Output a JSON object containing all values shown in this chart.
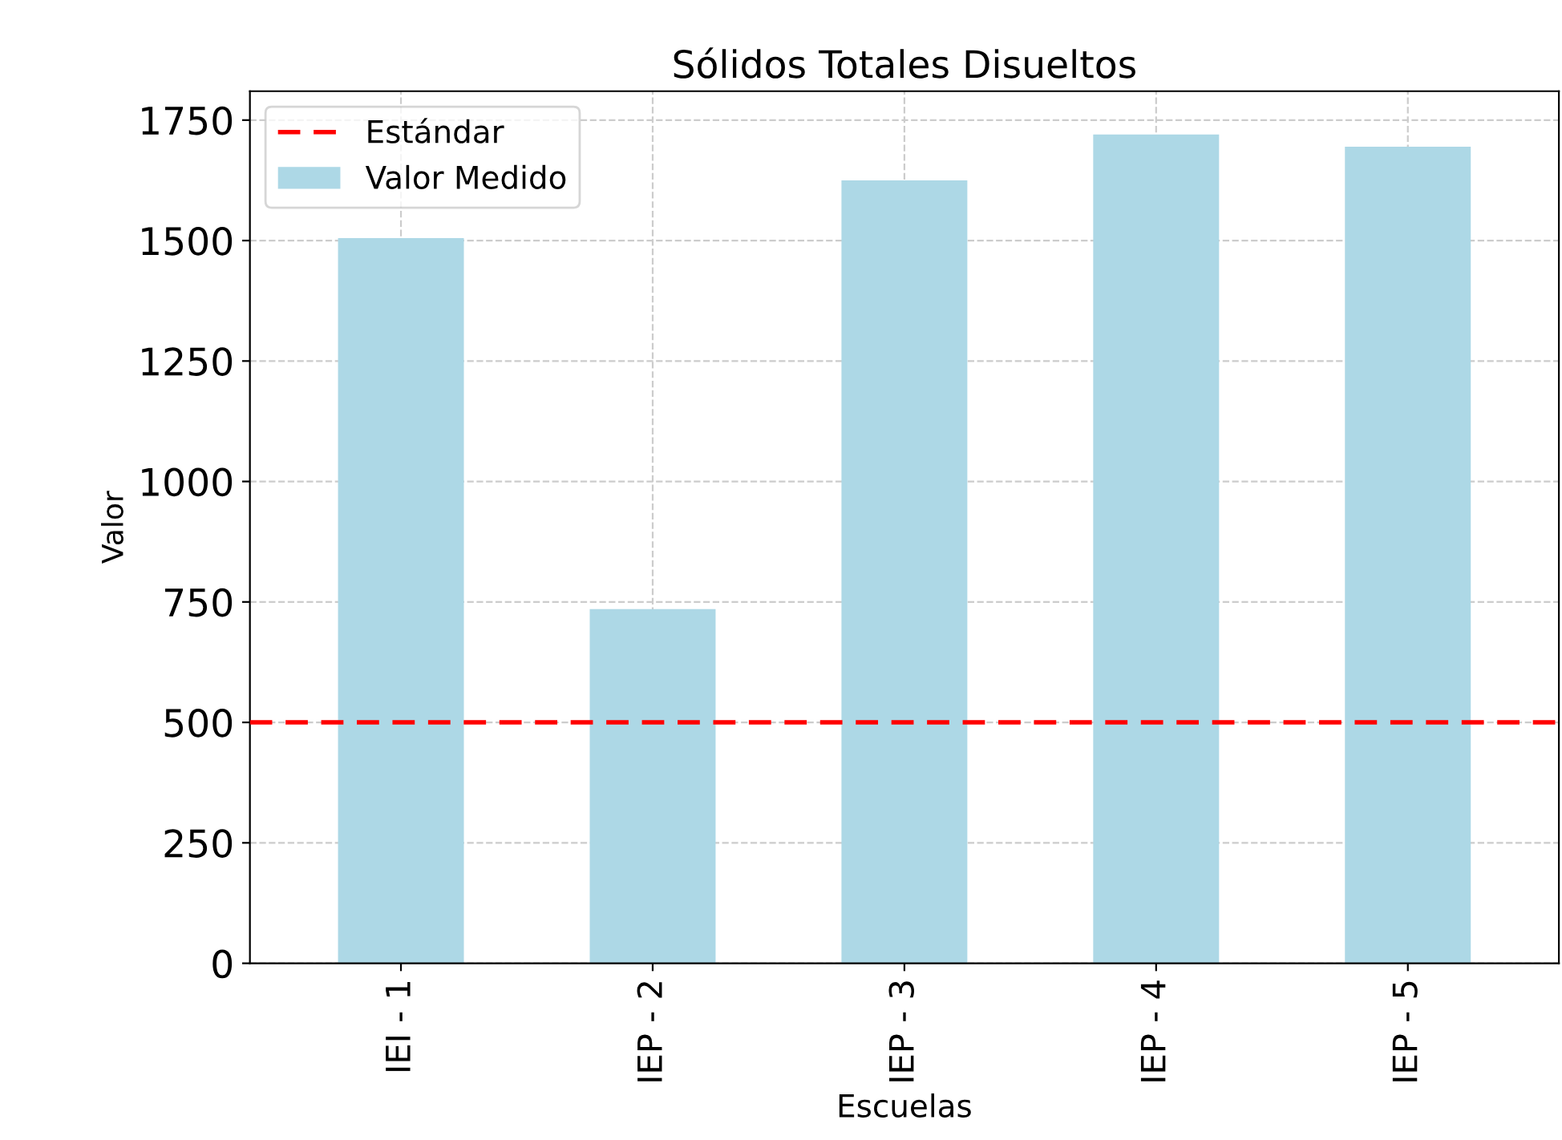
{
  "chart_data": {
    "type": "bar",
    "title": "Sólidos Totales Disueltos",
    "xlabel": "Escuelas",
    "ylabel": "Valor",
    "categories": [
      "IEI - 1",
      "IEP - 2",
      "IEP - 3",
      "IEP - 4",
      "IEP - 5"
    ],
    "series": [
      {
        "name": "Valor Medido",
        "color": "#add8e6",
        "values": [
          1505,
          735,
          1625,
          1720,
          1695
        ]
      }
    ],
    "ref_lines": [
      {
        "axis": "y",
        "value": 500,
        "label": "Estándar",
        "color": "#ff0000",
        "line_style": "dashed"
      }
    ],
    "ylim": [
      0,
      1810
    ],
    "yticks": [
      0,
      250,
      500,
      750,
      1000,
      1250,
      1500,
      1750
    ],
    "grid": true,
    "legend": "top left"
  }
}
